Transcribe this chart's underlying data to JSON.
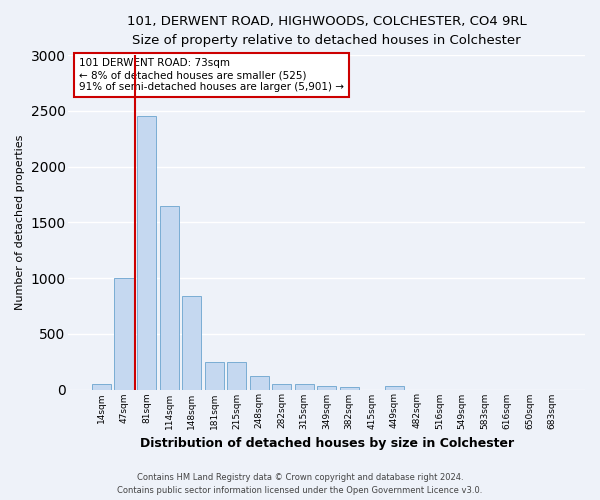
{
  "title1": "101, DERWENT ROAD, HIGHWOODS, COLCHESTER, CO4 9RL",
  "title2": "Size of property relative to detached houses in Colchester",
  "xlabel": "Distribution of detached houses by size in Colchester",
  "ylabel": "Number of detached properties",
  "categories": [
    "14sqm",
    "47sqm",
    "81sqm",
    "114sqm",
    "148sqm",
    "181sqm",
    "215sqm",
    "248sqm",
    "282sqm",
    "315sqm",
    "349sqm",
    "382sqm",
    "415sqm",
    "449sqm",
    "482sqm",
    "516sqm",
    "549sqm",
    "583sqm",
    "616sqm",
    "650sqm",
    "683sqm"
  ],
  "values": [
    50,
    1000,
    2450,
    1650,
    840,
    250,
    250,
    120,
    50,
    50,
    35,
    20,
    0,
    30,
    0,
    0,
    0,
    0,
    0,
    0,
    0
  ],
  "bar_color": "#c5d8f0",
  "bar_edge_color": "#7aadd4",
  "annotation_text": "101 DERWENT ROAD: 73sqm\n← 8% of detached houses are smaller (525)\n91% of semi-detached houses are larger (5,901) →",
  "annotation_box_color": "#ffffff",
  "annotation_box_edge_color": "#cc0000",
  "vline_color": "#cc0000",
  "vline_x": 1.5,
  "ylim": [
    0,
    3000
  ],
  "yticks": [
    0,
    500,
    1000,
    1500,
    2000,
    2500,
    3000
  ],
  "footer1": "Contains HM Land Registry data © Crown copyright and database right 2024.",
  "footer2": "Contains public sector information licensed under the Open Government Licence v3.0.",
  "bg_color": "#eef2f9",
  "grid_color": "#ffffff",
  "title1_fontsize": 9.5,
  "title2_fontsize": 8.5,
  "ylabel_fontsize": 8,
  "xlabel_fontsize": 9,
  "tick_fontsize": 6.5,
  "ann_fontsize": 7.5
}
